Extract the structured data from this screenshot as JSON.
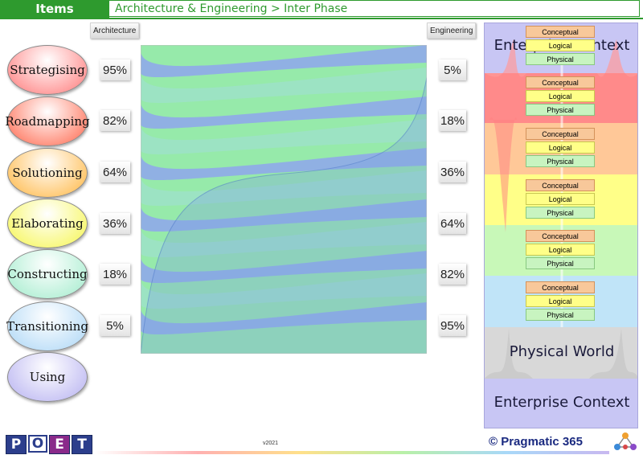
{
  "header": {
    "tab_label": "Items",
    "title": "Architecture & Engineering > Inter Phase"
  },
  "columns": {
    "left_label": "Architecture",
    "right_label": "Engineering"
  },
  "phases": [
    {
      "name": "Strategising",
      "arch": "95%",
      "eng": "5%",
      "color": "#ff9a9a"
    },
    {
      "name": "Roadmapping",
      "arch": "82%",
      "eng": "18%",
      "color": "#ff8c78"
    },
    {
      "name": "Solutioning",
      "arch": "64%",
      "eng": "36%",
      "color": "#ffc870"
    },
    {
      "name": "Elaborating",
      "arch": "36%",
      "eng": "64%",
      "color": "#f8f87a"
    },
    {
      "name": "Constructing",
      "arch": "18%",
      "eng": "82%",
      "color": "#b8f0d8"
    },
    {
      "name": "Transitioning",
      "arch": "5%",
      "eng": "95%",
      "color": "#c0e0f8"
    },
    {
      "name": "Using",
      "color": "#c8c4f4"
    }
  ],
  "right_panel": {
    "top_text": "Enterprise Context",
    "physical_world": "Physical World",
    "bottom_text": "Enterprise Context",
    "level_labels": {
      "conceptual": "Conceptual",
      "logical": "Logical",
      "physical": "Physical"
    },
    "band_colors": [
      "#ff8a8a",
      "#ffc898",
      "#ffff88",
      "#c8f8b8",
      "#c0e4f8",
      "#d8d8d8"
    ]
  },
  "footer": {
    "logo_letters": [
      "P",
      "O",
      "E",
      "T"
    ],
    "version": "v2021",
    "brand": "© Pragmatic 365"
  }
}
